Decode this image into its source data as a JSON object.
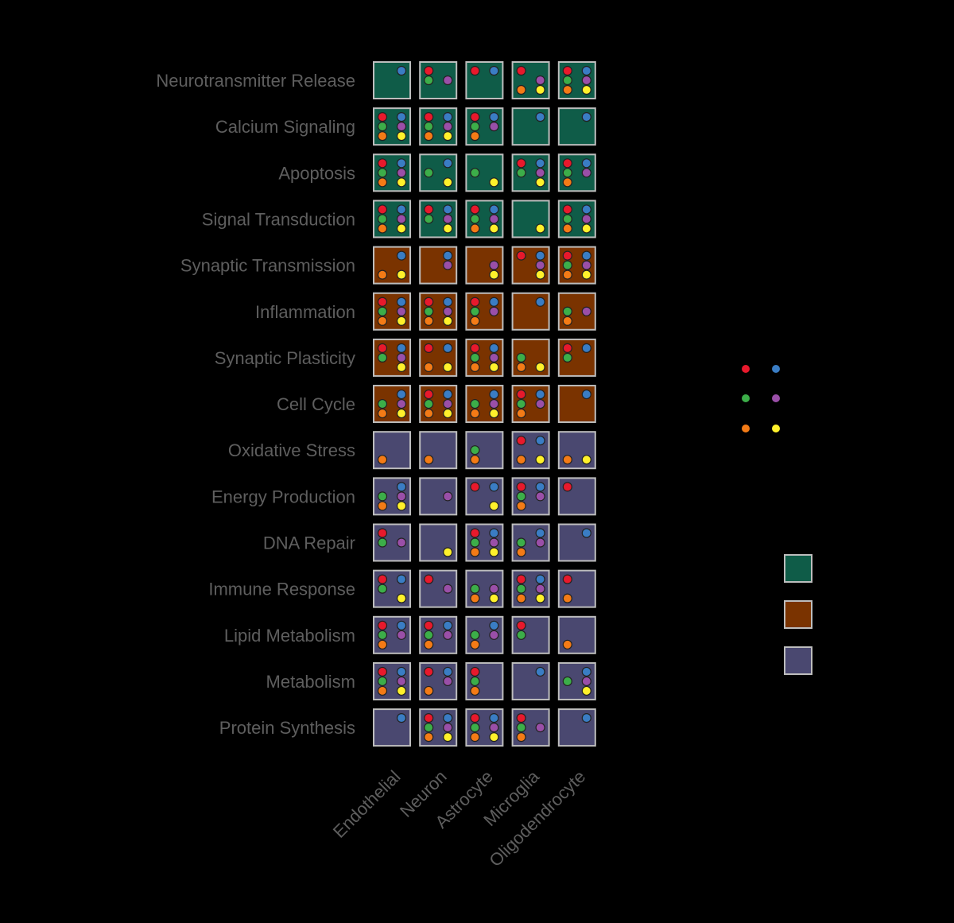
{
  "chart_data": {
    "type": "heatmap",
    "title": "",
    "xlabel": "",
    "ylabel": "",
    "rows": [
      "Neurotransmitter Release",
      "Calcium Signaling",
      "Apoptosis",
      "Signal Transduction",
      "Synaptic Transmission",
      "Inflammation",
      "Synaptic Plasticity",
      "Cell Cycle",
      "Oxidative Stress",
      "Energy Production",
      "DNA Repair",
      "Immune Response",
      "Lipid Metabolism",
      "Metabolism",
      "Protein Synthesis"
    ],
    "columns": [
      "Endothelial",
      "Neuron",
      "Astrocyte",
      "Microglia",
      "Oligodendrocyte"
    ],
    "row_category": [
      0,
      0,
      0,
      0,
      1,
      1,
      1,
      1,
      2,
      2,
      2,
      2,
      2,
      2,
      2
    ],
    "category_colors": [
      "#0f5c48",
      "#7a3300",
      "#4a4870"
    ],
    "marker_colors": [
      "#e8192c",
      "#3a7dc4",
      "#3cae49",
      "#9a4fa8",
      "#f47b16",
      "#fff12b"
    ],
    "marker_order": [
      "red",
      "blue",
      "green",
      "purple",
      "orange",
      "yellow"
    ],
    "markers": [
      [
        [
          0,
          1,
          0,
          0,
          0,
          0
        ],
        [
          1,
          0,
          1,
          1,
          0,
          0
        ],
        [
          1,
          1,
          0,
          0,
          0,
          0
        ],
        [
          1,
          0,
          0,
          1,
          1,
          1
        ],
        [
          1,
          1,
          1,
          1,
          1,
          1
        ]
      ],
      [
        [
          1,
          1,
          1,
          1,
          1,
          1
        ],
        [
          1,
          1,
          1,
          1,
          1,
          1
        ],
        [
          1,
          1,
          1,
          1,
          1,
          0
        ],
        [
          0,
          1,
          0,
          0,
          0,
          0
        ],
        [
          0,
          1,
          0,
          0,
          0,
          0
        ]
      ],
      [
        [
          1,
          1,
          1,
          1,
          1,
          1
        ],
        [
          0,
          1,
          1,
          0,
          0,
          1
        ],
        [
          0,
          0,
          1,
          0,
          0,
          1
        ],
        [
          1,
          1,
          1,
          1,
          0,
          1
        ],
        [
          1,
          1,
          1,
          1,
          1,
          0
        ]
      ],
      [
        [
          1,
          1,
          1,
          1,
          1,
          1
        ],
        [
          1,
          1,
          1,
          1,
          0,
          1
        ],
        [
          1,
          1,
          1,
          1,
          1,
          1
        ],
        [
          0,
          0,
          0,
          0,
          0,
          1
        ],
        [
          1,
          1,
          1,
          1,
          1,
          1
        ]
      ],
      [
        [
          0,
          1,
          0,
          0,
          1,
          1
        ],
        [
          0,
          1,
          0,
          1,
          0,
          0
        ],
        [
          0,
          0,
          0,
          1,
          0,
          1
        ],
        [
          1,
          1,
          0,
          1,
          0,
          1
        ],
        [
          1,
          1,
          1,
          1,
          1,
          1
        ]
      ],
      [
        [
          1,
          1,
          1,
          1,
          1,
          1
        ],
        [
          1,
          1,
          1,
          1,
          1,
          1
        ],
        [
          1,
          1,
          1,
          1,
          1,
          0
        ],
        [
          0,
          1,
          0,
          0,
          0,
          0
        ],
        [
          0,
          0,
          1,
          1,
          1,
          0
        ]
      ],
      [
        [
          1,
          1,
          1,
          1,
          0,
          1
        ],
        [
          1,
          1,
          0,
          0,
          1,
          1
        ],
        [
          1,
          1,
          1,
          1,
          1,
          1
        ],
        [
          0,
          0,
          1,
          0,
          1,
          1
        ],
        [
          1,
          1,
          1,
          0,
          0,
          0
        ]
      ],
      [
        [
          0,
          1,
          1,
          1,
          1,
          1
        ],
        [
          1,
          1,
          1,
          1,
          1,
          1
        ],
        [
          0,
          1,
          1,
          1,
          1,
          1
        ],
        [
          1,
          1,
          1,
          1,
          1,
          0
        ],
        [
          0,
          1,
          0,
          0,
          0,
          0
        ]
      ],
      [
        [
          0,
          0,
          0,
          0,
          1,
          0
        ],
        [
          0,
          0,
          0,
          0,
          1,
          0
        ],
        [
          0,
          0,
          1,
          0,
          1,
          0
        ],
        [
          1,
          1,
          0,
          0,
          1,
          1
        ],
        [
          0,
          0,
          0,
          0,
          1,
          1
        ]
      ],
      [
        [
          0,
          1,
          1,
          1,
          1,
          1
        ],
        [
          0,
          0,
          0,
          1,
          0,
          0
        ],
        [
          1,
          1,
          0,
          0,
          0,
          1
        ],
        [
          1,
          1,
          1,
          1,
          1,
          0
        ],
        [
          1,
          0,
          0,
          0,
          0,
          0
        ]
      ],
      [
        [
          1,
          0,
          1,
          1,
          0,
          0
        ],
        [
          0,
          0,
          0,
          0,
          0,
          1
        ],
        [
          1,
          1,
          1,
          1,
          1,
          1
        ],
        [
          0,
          1,
          1,
          1,
          1,
          0
        ],
        [
          0,
          1,
          0,
          0,
          0,
          0
        ]
      ],
      [
        [
          1,
          1,
          1,
          0,
          0,
          1
        ],
        [
          1,
          0,
          0,
          1,
          0,
          0
        ],
        [
          0,
          0,
          1,
          1,
          1,
          1
        ],
        [
          1,
          1,
          1,
          1,
          1,
          1
        ],
        [
          1,
          0,
          0,
          0,
          1,
          0
        ]
      ],
      [
        [
          1,
          1,
          1,
          1,
          1,
          0
        ],
        [
          1,
          1,
          1,
          1,
          1,
          0
        ],
        [
          0,
          1,
          1,
          1,
          1,
          0
        ],
        [
          1,
          0,
          1,
          0,
          0,
          0
        ],
        [
          0,
          0,
          0,
          0,
          1,
          0
        ]
      ],
      [
        [
          1,
          1,
          1,
          1,
          1,
          1
        ],
        [
          1,
          1,
          0,
          1,
          1,
          0
        ],
        [
          1,
          0,
          1,
          0,
          1,
          0
        ],
        [
          0,
          1,
          0,
          0,
          0,
          0
        ],
        [
          0,
          1,
          1,
          1,
          0,
          1
        ]
      ],
      [
        [
          0,
          1,
          0,
          0,
          0,
          0
        ],
        [
          1,
          1,
          1,
          1,
          1,
          1
        ],
        [
          1,
          1,
          1,
          1,
          1,
          1
        ],
        [
          1,
          0,
          1,
          1,
          1,
          0
        ],
        [
          0,
          1,
          0,
          0,
          0,
          0
        ]
      ]
    ],
    "legend": {
      "markers_title": "",
      "categories_title": "",
      "marker_labels": [
        "",
        "",
        "",
        "",
        "",
        ""
      ],
      "category_labels": [
        "",
        "",
        ""
      ]
    },
    "grid": false
  }
}
